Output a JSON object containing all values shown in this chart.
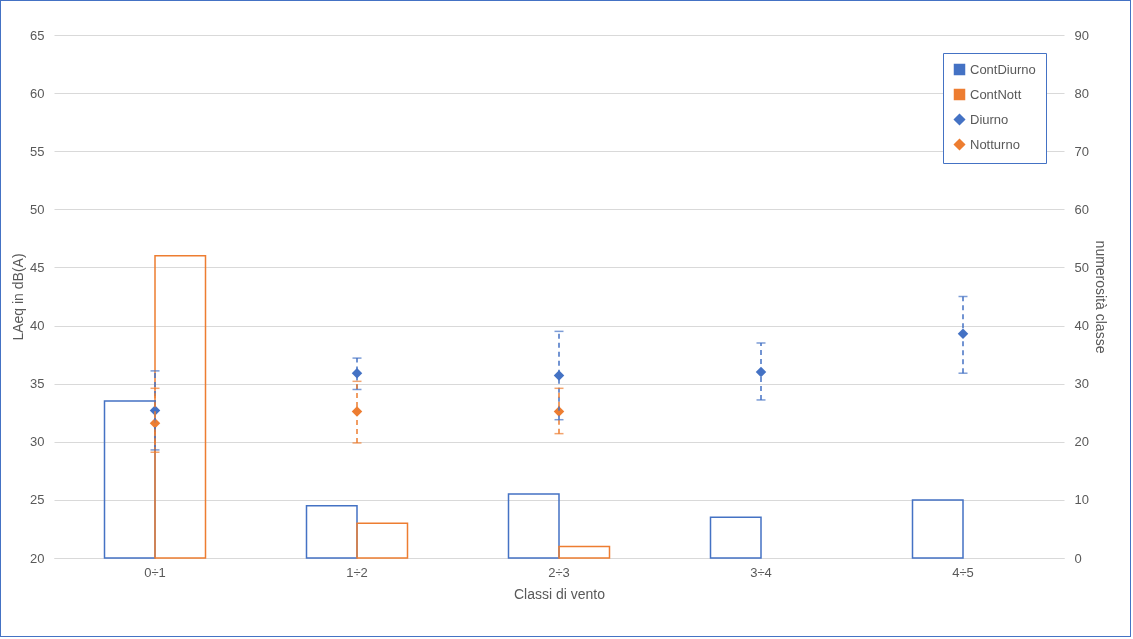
{
  "chart_data": {
    "type": "bar",
    "xlabel": "Classi di vento",
    "ylabel": "LAeq in dB(A)",
    "y2label": "numerosità classe",
    "categories": [
      "0÷1",
      "1÷2",
      "2÷3",
      "3÷4",
      "4÷5"
    ],
    "series": [
      {
        "name": "ContDiurno",
        "axis": "y2",
        "color": "#4472c4",
        "values": [
          27,
          9,
          11,
          7,
          10
        ]
      },
      {
        "name": "ContNott",
        "axis": "y2",
        "color": "#ed7d31",
        "values": [
          52,
          6,
          2,
          null,
          null
        ]
      },
      {
        "name": "Diurno",
        "type": "scatter",
        "color": "#4472c4",
        "values": [
          32.7,
          35.9,
          35.7,
          36.0,
          39.3
        ],
        "errors": [
          [
            29.3,
            36.1
          ],
          [
            34.5,
            37.2
          ],
          [
            31.9,
            39.5
          ],
          [
            33.6,
            38.5
          ],
          [
            35.9,
            42.5
          ]
        ]
      },
      {
        "name": "Notturno",
        "type": "scatter",
        "color": "#ed7d31",
        "values": [
          31.6,
          32.6,
          32.6,
          null,
          null
        ],
        "errors": [
          [
            29.1,
            34.6
          ],
          [
            29.9,
            35.2
          ],
          [
            30.7,
            34.6
          ],
          null,
          null
        ]
      }
    ],
    "ylim": [
      20,
      65
    ],
    "yticks": [
      20,
      25,
      30,
      35,
      40,
      45,
      50,
      55,
      60,
      65
    ],
    "y2lim": [
      0,
      90
    ],
    "y2ticks": [
      0,
      10,
      20,
      30,
      40,
      50,
      60,
      70,
      80,
      90
    ],
    "grid": "y",
    "legend": "top right",
    "marker": "diamond"
  }
}
